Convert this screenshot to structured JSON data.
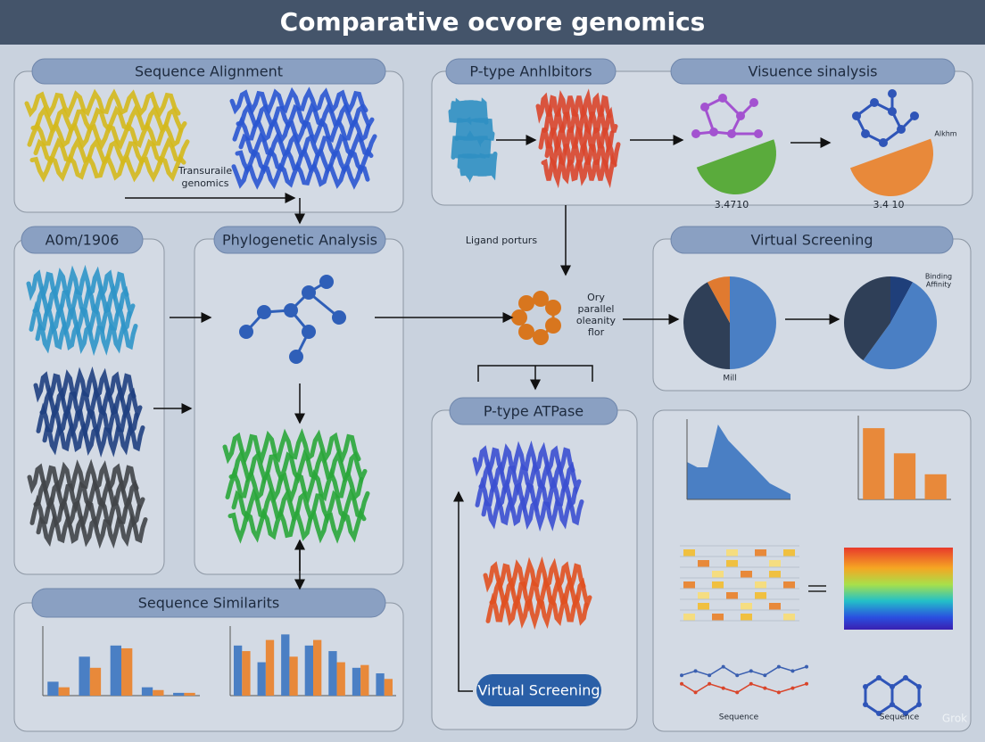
{
  "title": "Comparative ocvore genomics",
  "panels": [
    "Sequence Alignment",
    "P-type Anhlbitors",
    "Visuence sinalysis",
    "A0m/1906",
    "Phylogenetic Analysis",
    "Virtual Screening",
    "Sequence Similarits",
    "P-type ATPase"
  ],
  "annotations": {
    "transuraile": [
      "Transuraile",
      "genomics"
    ],
    "ligand": "Ligand porturs",
    "flow": [
      "Ory",
      "parallel",
      "oleanity",
      "flor"
    ],
    "value_left": "3.4710",
    "value_right": "3.4 10",
    "alkhm": "Alkhm",
    "binding": [
      "Binding",
      "Affinity"
    ],
    "mill": "Mill",
    "sequence_left": "Sequence",
    "sequence_right": "Sequence"
  },
  "button": "Virtual Screening",
  "watermark": "Grok",
  "pies": [
    {
      "values": [
        50,
        42,
        8
      ],
      "colors": [
        "#4a7fc4",
        "#2f3f57",
        "#e07a30"
      ]
    },
    {
      "values": [
        8,
        52,
        40
      ],
      "colors": [
        "#1f3f7a",
        "#4a7fc4",
        "#2f3f57"
      ]
    }
  ],
  "bar_charts": [
    {
      "ylim": [
        0,
        25
      ],
      "series": [
        {
          "color": "#4a7fc4",
          "values": [
            5,
            14,
            18,
            3,
            1
          ]
        },
        {
          "color": "#e8893a",
          "values": [
            3,
            10,
            17,
            2,
            1
          ]
        }
      ]
    },
    {
      "ylim": [
        0,
        25
      ],
      "series": [
        {
          "color": "#4a7fc4",
          "values": [
            18,
            12,
            22,
            18,
            16,
            10,
            8
          ]
        },
        {
          "color": "#e8893a",
          "values": [
            16,
            20,
            14,
            20,
            12,
            11,
            6
          ]
        }
      ]
    },
    {
      "ylim": [
        0,
        40
      ],
      "series": [
        {
          "color": "#e8893a",
          "values": [
            34,
            22,
            12
          ]
        }
      ]
    }
  ],
  "area_chart": {
    "ylim": [
      0,
      30
    ],
    "color": "#4a7fc4",
    "values": [
      14,
      12,
      12,
      28,
      22,
      18,
      14,
      10,
      6,
      4,
      2
    ]
  },
  "line_chart": {
    "ylim": [
      0,
      10
    ],
    "series": [
      {
        "color": "#3a5fb0",
        "values": [
          6,
          7,
          6,
          8,
          6,
          7,
          6,
          8,
          7,
          8
        ]
      },
      {
        "color": "#d9452b",
        "values": [
          4,
          2,
          4,
          3,
          2,
          4,
          3,
          2,
          3,
          4
        ]
      }
    ]
  }
}
